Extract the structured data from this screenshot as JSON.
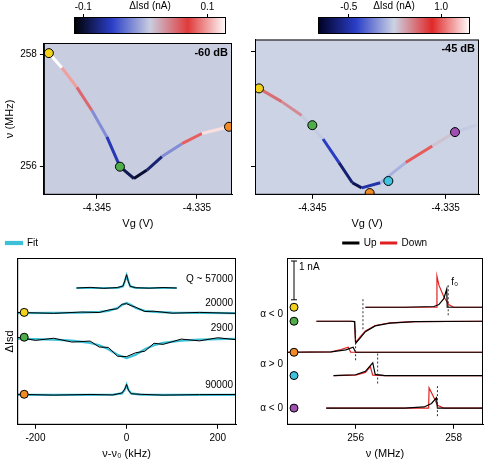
{
  "chart_data": [
    {
      "type": "heatmap",
      "title": "-60 dB",
      "x_label": "Vg (V)",
      "y_label": "ν (MHz)",
      "xlim": [
        -4.3503,
        -4.3315
      ],
      "xticks": [
        -4.345,
        -4.335
      ],
      "ylim": [
        255.5,
        258.2
      ],
      "yticks": [
        256,
        258
      ],
      "background": "#c9cde0",
      "colorbar": {
        "label": "ΔIsd (nA)",
        "range": [
          -0.115,
          0.13
        ],
        "ticks": [
          -0.1,
          0.1
        ],
        "colors": [
          "#000000",
          "#2a3ec8",
          "#c9cde0",
          "#e03a3a",
          "#ffffff"
        ]
      },
      "curve": {
        "x": [
          -4.3498,
          -4.3485,
          -4.347,
          -4.3455,
          -4.344,
          -4.3427,
          -4.3413,
          -4.34,
          -4.3385,
          -4.3365,
          -4.3345,
          -4.3318
        ],
        "y": [
          258.02,
          257.76,
          257.41,
          257.0,
          256.53,
          256.0,
          255.79,
          255.94,
          256.18,
          256.41,
          256.59,
          256.71
        ],
        "z": [
          0.13,
          0.1,
          0.05,
          -0.02,
          -0.06,
          -0.09,
          -0.1,
          -0.08,
          -0.02,
          0.08,
          0.12,
          0.13
        ]
      },
      "markers": {
        "x": [
          -4.3498,
          -4.3427,
          -4.3318
        ],
        "y": [
          258.02,
          256.0,
          256.71
        ],
        "colors": [
          "#f2d21b",
          "#4fae4a",
          "#f08a24"
        ]
      }
    },
    {
      "type": "heatmap",
      "title": "-45 dB",
      "x_label": "Vg (V)",
      "xlim": [
        -4.3493,
        -4.3325
      ],
      "xticks": [
        -4.345,
        -4.335
      ],
      "ylim": [
        255.5,
        258.2
      ],
      "yticks": [
        256,
        258
      ],
      "tick_labels": "x",
      "background": "#ccd3e4",
      "colorbar": {
        "label": "ΔIsd (nA)",
        "range": [
          -1.0,
          1.47
        ],
        "ticks": [
          -0.5,
          {
            "value": 1,
            "label": "1.0"
          }
        ],
        "colors": [
          "#000020",
          "#2a3ec8",
          "#ccd3e4",
          "#e02828",
          "#ffffff"
        ]
      },
      "curve": {
        "x": [
          -4.349,
          -4.3473,
          -4.3458,
          -4.3442,
          -4.343,
          -4.342,
          -4.3413,
          -4.3399,
          -4.338,
          -4.336,
          -4.3343,
          -4.3327
        ],
        "y": [
          257.35,
          257.12,
          256.88,
          256.47,
          256.06,
          255.71,
          255.62,
          255.71,
          256.06,
          256.35,
          256.59,
          256.71
        ],
        "z": [
          0.6,
          0.5,
          0.2,
          -0.4,
          -0.7,
          -0.8,
          -0.5,
          0.1,
          1.0,
          0.3,
          0.2,
          0.2
        ]
      },
      "markers": {
        "x": [
          -4.349,
          -4.345,
          -4.3407,
          -4.3393,
          -4.3343
        ],
        "y": [
          257.35,
          256.71,
          255.53,
          255.74,
          256.59
        ],
        "colors": [
          "#f2d21b",
          "#4fae4a",
          "#f08a24",
          "#3fc4e0",
          "#a050b0"
        ]
      }
    },
    {
      "type": "line",
      "x_label": "ν-ν₀ (kHz)",
      "y_label": "ΔIsd",
      "xlim": [
        -240,
        240
      ],
      "xticks": [
        -200,
        0,
        200
      ],
      "ylim": [
        0,
        100
      ],
      "tick_labels": "x",
      "legend": "top",
      "fit": {
        "name": "Fit",
        "color": "#3cc0d8"
      },
      "series": [
        {
          "name": "Q ~ 57000",
          "color": "#000000",
          "x": [
            -110,
            -80,
            -50,
            -20,
            -8,
            -4,
            0,
            4,
            8,
            20,
            50,
            80,
            110
          ],
          "values": [
            82,
            82.4,
            81.8,
            82.3,
            83.2,
            86.3,
            90,
            85.7,
            83,
            82.2,
            81.9,
            82.3,
            82
          ],
          "fit_values": [
            82,
            82,
            82,
            82.1,
            83,
            86,
            89.5,
            86,
            83,
            82.1,
            82,
            82,
            82
          ]
        },
        {
          "name": "20000",
          "color": "#000000",
          "dot_color": "#f2d21b",
          "x": [
            -240,
            -160,
            -100,
            -60,
            -40,
            -20,
            -10,
            0,
            10,
            20,
            40,
            60,
            100,
            160,
            240
          ],
          "values": [
            67.4,
            66.8,
            67.6,
            67.3,
            68.8,
            69.6,
            72.3,
            72.6,
            71.4,
            70.5,
            67.9,
            68.1,
            66.9,
            67.4,
            66.8
          ],
          "fit_values": [
            67,
            67.1,
            67.3,
            67.7,
            68.3,
            70,
            71.8,
            73,
            71.8,
            70,
            68.3,
            67.7,
            67.3,
            67.1,
            67
          ]
        },
        {
          "name": "2900",
          "color": "#000000",
          "dot_color": "#4fae4a",
          "x": [
            -240,
            -200,
            -160,
            -120,
            -80,
            -60,
            -40,
            -20,
            0,
            20,
            40,
            60,
            80,
            120,
            160,
            200,
            240
          ],
          "values": [
            52.5,
            50.6,
            51.9,
            49.6,
            50.2,
            46.6,
            46.4,
            41.1,
            40.9,
            43.2,
            44.1,
            48.9,
            48.2,
            51.4,
            50.3,
            52.2,
            51.0
          ],
          "fit_values": [
            51.6,
            51.4,
            51.1,
            50.5,
            49.1,
            47.7,
            45.3,
            42,
            40,
            42,
            45.3,
            47.7,
            49.1,
            50.5,
            51.1,
            51.4,
            51.6
          ]
        },
        {
          "name": "90000",
          "color": "#000000",
          "dot_color": "#f08a24",
          "x": [
            -240,
            -160,
            -80,
            -30,
            -10,
            -4,
            0,
            4,
            10,
            30,
            80,
            160,
            240
          ],
          "values": [
            18.3,
            17.8,
            18.2,
            17.9,
            19.1,
            21.4,
            24.2,
            20.7,
            18.6,
            18.3,
            17.8,
            18.1,
            18.2
          ],
          "fit_values": [
            18,
            18,
            18,
            18.1,
            18.8,
            21,
            24,
            21,
            18.8,
            18.1,
            18,
            18,
            18
          ]
        }
      ]
    },
    {
      "type": "line",
      "x_label": "ν (MHz)",
      "xlim": [
        254.6,
        258.6
      ],
      "xticks": [
        256,
        258
      ],
      "ylim": [
        0,
        4.3
      ],
      "tick_labels": "x",
      "legend": "top",
      "series": [
        {
          "name": "Up",
          "color": "#000000"
        },
        {
          "name": "Down",
          "color": "#e02020"
        }
      ],
      "f0_label": "f₀",
      "scale_bar": {
        "value": 1,
        "label": "1 nA"
      },
      "traces": [
        {
          "dot_color": "#f2d21b",
          "f0": 257.89,
          "sweeps": [
            {
              "x": [
                256.2,
                257.0,
                257.6,
                257.7,
                257.8,
                257.86,
                257.87,
                258.0,
                258.6
              ],
              "values": [
                3.03,
                3.03,
                3.05,
                3.1,
                3.25,
                3.5,
                3.03,
                3.03,
                3.03
              ]
            },
            {
              "x": [
                256.2,
                257.0,
                257.65,
                257.66,
                257.7,
                257.8,
                257.9,
                258.0,
                258.6
              ],
              "values": [
                3.03,
                3.03,
                3.03,
                3.83,
                3.6,
                3.3,
                3.1,
                3.03,
                3.03
              ]
            }
          ]
        },
        {
          "dot_color": "#4fae4a",
          "f0": 256.15,
          "sweeps": [
            {
              "x": [
                255.2,
                255.9,
                255.98,
                256.0,
                256.1,
                256.2,
                256.4,
                256.7,
                257.2,
                258.6
              ],
              "values": [
                2.67,
                2.67,
                2.66,
                2.1,
                2.25,
                2.4,
                2.55,
                2.62,
                2.66,
                2.67
              ]
            },
            {
              "x": [
                255.2,
                255.9,
                255.98,
                256.0,
                256.1,
                256.2,
                256.4,
                256.7,
                257.2,
                258.6
              ],
              "values": [
                2.67,
                2.67,
                2.66,
                2.12,
                2.28,
                2.42,
                2.56,
                2.63,
                2.66,
                2.67
              ]
            }
          ]
        },
        {
          "dot_color": "#f08a24",
          "f0": 256.0,
          "sweeps": [
            {
              "x": [
                254.6,
                255.5,
                255.8,
                255.95,
                256.0,
                256.5,
                258.6
              ],
              "values": [
                1.87,
                1.88,
                1.93,
                2.0,
                1.87,
                1.87,
                1.87
              ]
            },
            {
              "x": [
                254.6,
                255.5,
                255.7,
                255.85,
                255.9,
                256.5,
                258.6
              ],
              "values": [
                1.87,
                1.88,
                1.94,
                2.0,
                1.87,
                1.87,
                1.87
              ]
            }
          ]
        },
        {
          "dot_color": "#3fc4e0",
          "f0": 256.45,
          "sweeps": [
            {
              "x": [
                255.55,
                256.0,
                256.2,
                256.35,
                256.4,
                256.6,
                258.6
              ],
              "values": [
                1.27,
                1.29,
                1.38,
                1.6,
                1.3,
                1.27,
                1.27
              ]
            },
            {
              "x": [
                255.55,
                256.0,
                256.2,
                256.3,
                256.35,
                256.6,
                258.6
              ],
              "values": [
                1.27,
                1.28,
                1.35,
                1.5,
                1.28,
                1.27,
                1.27
              ]
            }
          ]
        },
        {
          "dot_color": "#a050b0",
          "f0": 257.67,
          "sweeps": [
            {
              "x": [
                255.4,
                257.0,
                257.4,
                257.55,
                257.65,
                257.67,
                257.8,
                258.6
              ],
              "values": [
                0.43,
                0.43,
                0.46,
                0.55,
                0.7,
                0.43,
                0.43,
                0.43
              ]
            },
            {
              "x": [
                255.4,
                257.0,
                257.49,
                257.5,
                257.6,
                257.67,
                257.8,
                258.6
              ],
              "values": [
                0.43,
                0.43,
                0.43,
                0.95,
                0.7,
                0.5,
                0.43,
                0.43
              ]
            }
          ]
        }
      ],
      "annotations": [
        {
          "text": "α < 0",
          "traces": [
            0,
            1
          ]
        },
        {
          "text": "α > 0",
          "traces": [
            2,
            3
          ]
        },
        {
          "text": "α < 0",
          "traces": [
            4
          ]
        }
      ]
    }
  ]
}
